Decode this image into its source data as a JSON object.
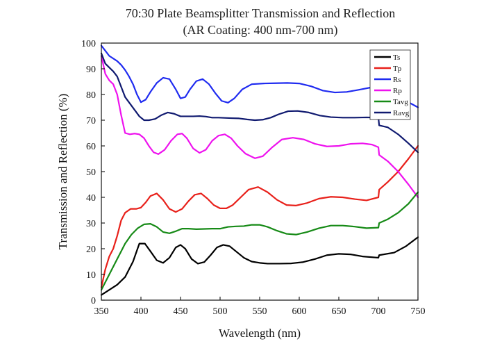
{
  "chart_data": {
    "type": "line",
    "title": "70:30 Plate Beamsplitter Transmission and Reflection",
    "subtitle": "(AR Coating: 400 nm-700 nm)",
    "xlabel": "Wavelength (nm)",
    "ylabel": "Transmission and Reflection (%)",
    "xlim": [
      350,
      750
    ],
    "ylim": [
      0,
      100
    ],
    "x_ticks": [
      350,
      400,
      450,
      500,
      550,
      600,
      650,
      700,
      750
    ],
    "y_ticks": [
      0,
      10,
      20,
      30,
      40,
      50,
      60,
      70,
      80,
      90,
      100
    ],
    "grid": false,
    "legend_position": "top-right",
    "series": [
      {
        "name": "Ts",
        "color": "#000000",
        "points": [
          [
            350,
            2
          ],
          [
            360,
            4
          ],
          [
            370,
            6
          ],
          [
            380,
            9
          ],
          [
            390,
            15
          ],
          [
            398,
            22
          ],
          [
            405,
            22
          ],
          [
            412,
            19
          ],
          [
            420,
            15.5
          ],
          [
            428,
            14.5
          ],
          [
            436,
            16.5
          ],
          [
            444,
            20.5
          ],
          [
            450,
            21.5
          ],
          [
            456,
            20
          ],
          [
            464,
            16
          ],
          [
            472,
            14.2
          ],
          [
            480,
            14.8
          ],
          [
            488,
            17.5
          ],
          [
            496,
            20.5
          ],
          [
            504,
            21.5
          ],
          [
            512,
            21
          ],
          [
            520,
            19
          ],
          [
            530,
            16.5
          ],
          [
            540,
            15
          ],
          [
            550,
            14.5
          ],
          [
            560,
            14.2
          ],
          [
            575,
            14.2
          ],
          [
            590,
            14.3
          ],
          [
            605,
            14.8
          ],
          [
            620,
            16
          ],
          [
            635,
            17.5
          ],
          [
            650,
            18
          ],
          [
            665,
            17.8
          ],
          [
            680,
            17
          ],
          [
            700,
            16.5
          ],
          [
            701,
            17.5
          ],
          [
            720,
            18.5
          ],
          [
            735,
            21
          ],
          [
            750,
            24.5
          ]
        ]
      },
      {
        "name": "Tp",
        "color": "#e8201a",
        "points": [
          [
            350,
            5
          ],
          [
            355,
            12
          ],
          [
            360,
            17
          ],
          [
            365,
            20
          ],
          [
            370,
            25
          ],
          [
            375,
            31
          ],
          [
            380,
            34
          ],
          [
            387,
            35.5
          ],
          [
            394,
            35.5
          ],
          [
            400,
            36
          ],
          [
            406,
            38
          ],
          [
            412,
            40.5
          ],
          [
            420,
            41.5
          ],
          [
            428,
            39
          ],
          [
            436,
            35.5
          ],
          [
            444,
            34.3
          ],
          [
            452,
            35.5
          ],
          [
            460,
            38.5
          ],
          [
            468,
            41
          ],
          [
            476,
            41.5
          ],
          [
            484,
            39.5
          ],
          [
            492,
            37
          ],
          [
            500,
            35.7
          ],
          [
            508,
            35.7
          ],
          [
            516,
            37
          ],
          [
            526,
            40
          ],
          [
            536,
            43
          ],
          [
            548,
            44
          ],
          [
            560,
            42
          ],
          [
            572,
            39
          ],
          [
            584,
            37
          ],
          [
            596,
            36.8
          ],
          [
            610,
            37.8
          ],
          [
            625,
            39.5
          ],
          [
            640,
            40.2
          ],
          [
            655,
            40
          ],
          [
            670,
            39.3
          ],
          [
            685,
            38.8
          ],
          [
            700,
            40
          ],
          [
            701,
            43
          ],
          [
            712,
            46
          ],
          [
            725,
            50
          ],
          [
            738,
            55
          ],
          [
            750,
            60
          ]
        ]
      },
      {
        "name": "Rs",
        "color": "#1f2bf0",
        "points": [
          [
            350,
            99
          ],
          [
            355,
            97
          ],
          [
            360,
            95
          ],
          [
            365,
            94
          ],
          [
            370,
            93
          ],
          [
            375,
            91.5
          ],
          [
            380,
            89.5
          ],
          [
            385,
            87
          ],
          [
            390,
            84
          ],
          [
            395,
            80
          ],
          [
            400,
            77
          ],
          [
            406,
            78
          ],
          [
            412,
            81
          ],
          [
            420,
            84.5
          ],
          [
            428,
            86.5
          ],
          [
            436,
            86
          ],
          [
            444,
            82
          ],
          [
            450,
            78.5
          ],
          [
            456,
            79
          ],
          [
            462,
            82
          ],
          [
            470,
            85.2
          ],
          [
            478,
            86
          ],
          [
            486,
            84
          ],
          [
            494,
            80.5
          ],
          [
            502,
            77.5
          ],
          [
            510,
            76.8
          ],
          [
            518,
            78.5
          ],
          [
            528,
            82
          ],
          [
            540,
            84
          ],
          [
            555,
            84.3
          ],
          [
            570,
            84.4
          ],
          [
            585,
            84.5
          ],
          [
            600,
            84.3
          ],
          [
            615,
            83.2
          ],
          [
            630,
            81.5
          ],
          [
            645,
            80.8
          ],
          [
            660,
            81
          ],
          [
            675,
            81.8
          ],
          [
            690,
            82.7
          ],
          [
            700,
            83.5
          ],
          [
            701,
            80
          ],
          [
            712,
            79.5
          ],
          [
            725,
            78.5
          ],
          [
            738,
            77
          ],
          [
            750,
            75
          ]
        ]
      },
      {
        "name": "Rp",
        "color": "#ee12ee",
        "points": [
          [
            350,
            95
          ],
          [
            355,
            88
          ],
          [
            360,
            85.5
          ],
          [
            365,
            84
          ],
          [
            370,
            80
          ],
          [
            375,
            72
          ],
          [
            380,
            65
          ],
          [
            386,
            64.5
          ],
          [
            392,
            64.8
          ],
          [
            398,
            64.5
          ],
          [
            404,
            63
          ],
          [
            410,
            60
          ],
          [
            416,
            57.5
          ],
          [
            422,
            56.8
          ],
          [
            430,
            58.5
          ],
          [
            438,
            62
          ],
          [
            446,
            64.5
          ],
          [
            452,
            64.8
          ],
          [
            458,
            63
          ],
          [
            466,
            59
          ],
          [
            474,
            57.3
          ],
          [
            482,
            58.5
          ],
          [
            490,
            62
          ],
          [
            498,
            64
          ],
          [
            506,
            64.5
          ],
          [
            514,
            63
          ],
          [
            522,
            60
          ],
          [
            532,
            57
          ],
          [
            544,
            55.2
          ],
          [
            554,
            56
          ],
          [
            566,
            59.5
          ],
          [
            578,
            62.5
          ],
          [
            592,
            63.2
          ],
          [
            606,
            62.5
          ],
          [
            620,
            60.8
          ],
          [
            635,
            59.8
          ],
          [
            650,
            60
          ],
          [
            665,
            60.8
          ],
          [
            680,
            61
          ],
          [
            692,
            60.5
          ],
          [
            700,
            59.5
          ],
          [
            701,
            56.5
          ],
          [
            712,
            54
          ],
          [
            725,
            50
          ],
          [
            738,
            45
          ],
          [
            750,
            40
          ]
        ]
      },
      {
        "name": "Tavg",
        "color": "#168a16",
        "points": [
          [
            350,
            4
          ],
          [
            355,
            7
          ],
          [
            360,
            10
          ],
          [
            365,
            13
          ],
          [
            370,
            16
          ],
          [
            375,
            19
          ],
          [
            380,
            22
          ],
          [
            388,
            25.5
          ],
          [
            396,
            28
          ],
          [
            404,
            29.5
          ],
          [
            412,
            29.7
          ],
          [
            420,
            28.5
          ],
          [
            428,
            26.5
          ],
          [
            436,
            26
          ],
          [
            444,
            26.8
          ],
          [
            452,
            27.8
          ],
          [
            460,
            27.8
          ],
          [
            470,
            27.6
          ],
          [
            480,
            27.7
          ],
          [
            490,
            27.8
          ],
          [
            500,
            27.8
          ],
          [
            510,
            28.5
          ],
          [
            520,
            28.7
          ],
          [
            530,
            28.8
          ],
          [
            540,
            29.3
          ],
          [
            550,
            29.3
          ],
          [
            560,
            28.5
          ],
          [
            572,
            27
          ],
          [
            584,
            25.8
          ],
          [
            596,
            25.5
          ],
          [
            610,
            26.5
          ],
          [
            625,
            28
          ],
          [
            640,
            29
          ],
          [
            655,
            29
          ],
          [
            670,
            28.6
          ],
          [
            685,
            28
          ],
          [
            700,
            28.2
          ],
          [
            701,
            30
          ],
          [
            712,
            31.5
          ],
          [
            725,
            34
          ],
          [
            738,
            37.5
          ],
          [
            750,
            42
          ]
        ]
      },
      {
        "name": "Ravg",
        "color": "#101a70",
        "points": [
          [
            350,
            96
          ],
          [
            355,
            92
          ],
          [
            360,
            90.5
          ],
          [
            365,
            89
          ],
          [
            370,
            87
          ],
          [
            375,
            83
          ],
          [
            380,
            79
          ],
          [
            386,
            76.5
          ],
          [
            392,
            74
          ],
          [
            398,
            71.5
          ],
          [
            404,
            70
          ],
          [
            410,
            70
          ],
          [
            418,
            70.5
          ],
          [
            426,
            72
          ],
          [
            434,
            73
          ],
          [
            442,
            72.5
          ],
          [
            450,
            71.5
          ],
          [
            458,
            71.5
          ],
          [
            466,
            71.5
          ],
          [
            474,
            71.6
          ],
          [
            482,
            71.4
          ],
          [
            490,
            71
          ],
          [
            498,
            71
          ],
          [
            506,
            70.9
          ],
          [
            514,
            70.8
          ],
          [
            524,
            70.7
          ],
          [
            534,
            70.3
          ],
          [
            544,
            70
          ],
          [
            554,
            70.2
          ],
          [
            564,
            71
          ],
          [
            574,
            72.3
          ],
          [
            586,
            73.5
          ],
          [
            598,
            73.6
          ],
          [
            612,
            73
          ],
          [
            626,
            71.8
          ],
          [
            640,
            71.2
          ],
          [
            655,
            71
          ],
          [
            670,
            71
          ],
          [
            685,
            71.1
          ],
          [
            700,
            71
          ],
          [
            701,
            68
          ],
          [
            712,
            67.2
          ],
          [
            725,
            64.5
          ],
          [
            738,
            61
          ],
          [
            750,
            57.5
          ]
        ]
      }
    ]
  }
}
